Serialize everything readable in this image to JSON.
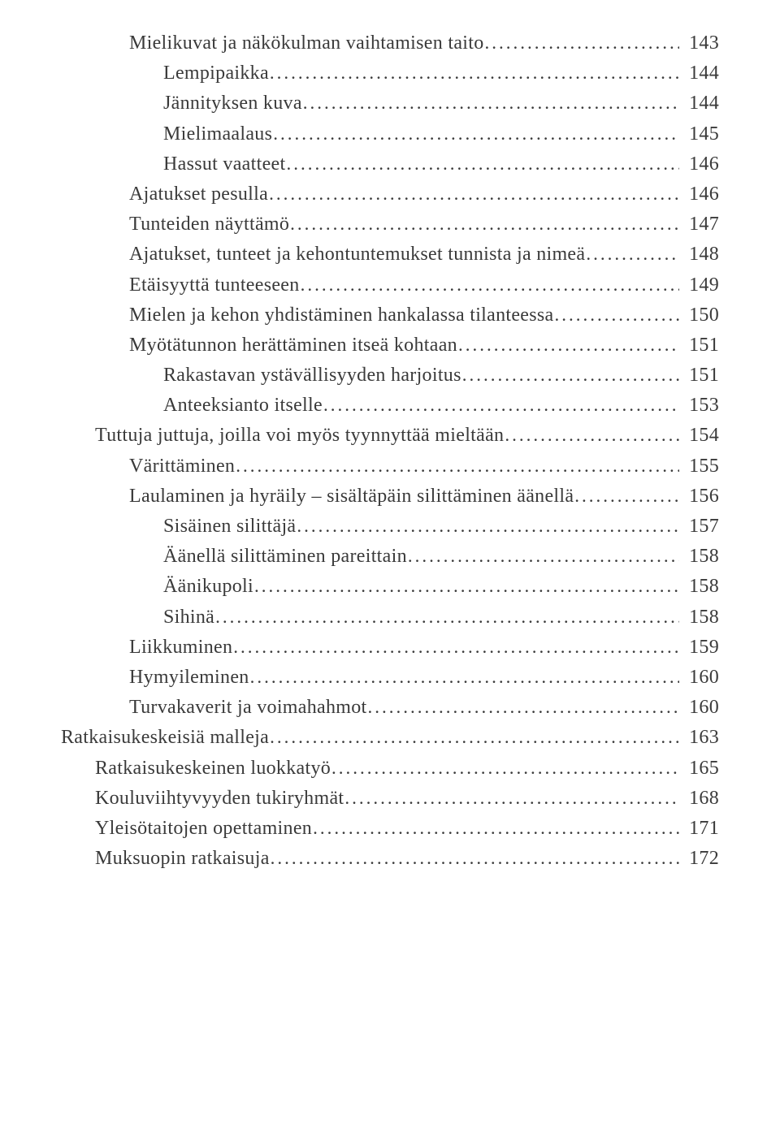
{
  "toc": {
    "text_color": "#3a3a3a",
    "background_color": "#ffffff",
    "fontsize": 24,
    "font_family": "serif-light",
    "leader_char": ".",
    "entries": [
      {
        "indent": 2,
        "label": "Mielikuvat ja näkökulman vaihtamisen taito",
        "page": "143"
      },
      {
        "indent": 3,
        "label": "Lempipaikka",
        "page": "144"
      },
      {
        "indent": 3,
        "label": "Jännityksen kuva",
        "page": "144"
      },
      {
        "indent": 3,
        "label": "Mielimaalaus",
        "page": "145"
      },
      {
        "indent": 3,
        "label": "Hassut vaatteet",
        "page": "146"
      },
      {
        "indent": 2,
        "label": "Ajatukset pesulla",
        "page": "146"
      },
      {
        "indent": 2,
        "label": "Tunteiden näyttämö",
        "page": "147"
      },
      {
        "indent": 2,
        "label": "Ajatukset, tunteet ja kehontuntemukset tunnista ja nimeä",
        "page": "148"
      },
      {
        "indent": 2,
        "label": "Etäisyyttä tunteeseen",
        "page": "149"
      },
      {
        "indent": 2,
        "label": "Mielen ja kehon yhdistäminen hankalassa tilanteessa",
        "page": "150"
      },
      {
        "indent": 2,
        "label": "Myötätunnon herättäminen itseä kohtaan",
        "page": "151"
      },
      {
        "indent": 3,
        "label": "Rakastavan ystävällisyyden harjoitus",
        "page": "151"
      },
      {
        "indent": 3,
        "label": "Anteeksianto itselle",
        "page": "153"
      },
      {
        "indent": 1,
        "label": "Tuttuja juttuja, joilla voi myös tyynnyttää mieltään",
        "page": "154"
      },
      {
        "indent": 2,
        "label": "Värittäminen",
        "page": "155"
      },
      {
        "indent": 2,
        "label": "Laulaminen ja hyräily – sisältäpäin silittäminen äänellä",
        "page": "156"
      },
      {
        "indent": 3,
        "label": "Sisäinen silittäjä",
        "page": "157"
      },
      {
        "indent": 3,
        "label": "Äänellä silittäminen pareittain",
        "page": "158"
      },
      {
        "indent": 3,
        "label": "Äänikupoli",
        "page": "158"
      },
      {
        "indent": 3,
        "label": "Sihinä",
        "page": "158"
      },
      {
        "indent": 2,
        "label": "Liikkuminen",
        "page": "159"
      },
      {
        "indent": 2,
        "label": "Hymyileminen",
        "page": "160"
      },
      {
        "indent": 2,
        "label": "Turvakaverit ja voimahahmot",
        "page": "160"
      },
      {
        "indent": 0,
        "label": "Ratkaisukeskeisiä malleja",
        "page": "163"
      },
      {
        "indent": 1,
        "label": "Ratkaisukeskeinen luokkatyö",
        "page": "165"
      },
      {
        "indent": 1,
        "label": "Kouluviihtyvyyden tukiryhmät",
        "page": "168"
      },
      {
        "indent": 1,
        "label": "Yleisötaitojen opettaminen",
        "page": "171"
      },
      {
        "indent": 1,
        "label": "Muksuopin ratkaisuja",
        "page": "172"
      }
    ]
  }
}
